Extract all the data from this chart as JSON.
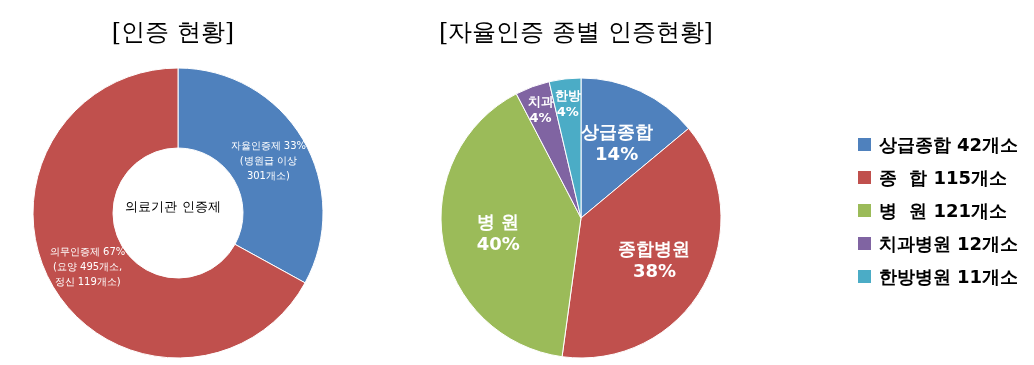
{
  "chart_data": [
    {
      "type": "donut",
      "title": "[인증 현황]",
      "categories": [
        "자율인증제 33%\n(병원급 이상\n301개소)",
        "의무인증제 67%\n(요양 495개소,\n정신 119개소)"
      ],
      "values": [
        33,
        67
      ],
      "colors": [
        "#4f81bd",
        "#c0504d"
      ],
      "annotations": [
        "의료기관 인증제"
      ]
    },
    {
      "type": "pie",
      "title": "[자율인증 종별 인증현황]",
      "categories": [
        "상급종합 42개소",
        "종  합 115개소",
        "병  원 121개소",
        "치과병원 12개소",
        "한방병원 11개소"
      ],
      "values": [
        42,
        115,
        121,
        12,
        11
      ],
      "colors": [
        "#4f81bd",
        "#c0504d",
        "#9bbb59",
        "#8064a2",
        "#4bacc6"
      ],
      "value_labels": [
        "상급종합\n14%",
        "종합병원\n38%",
        "병 원\n40%",
        "치과\n4%",
        "한방\n4%"
      ],
      "legend": "right"
    }
  ]
}
